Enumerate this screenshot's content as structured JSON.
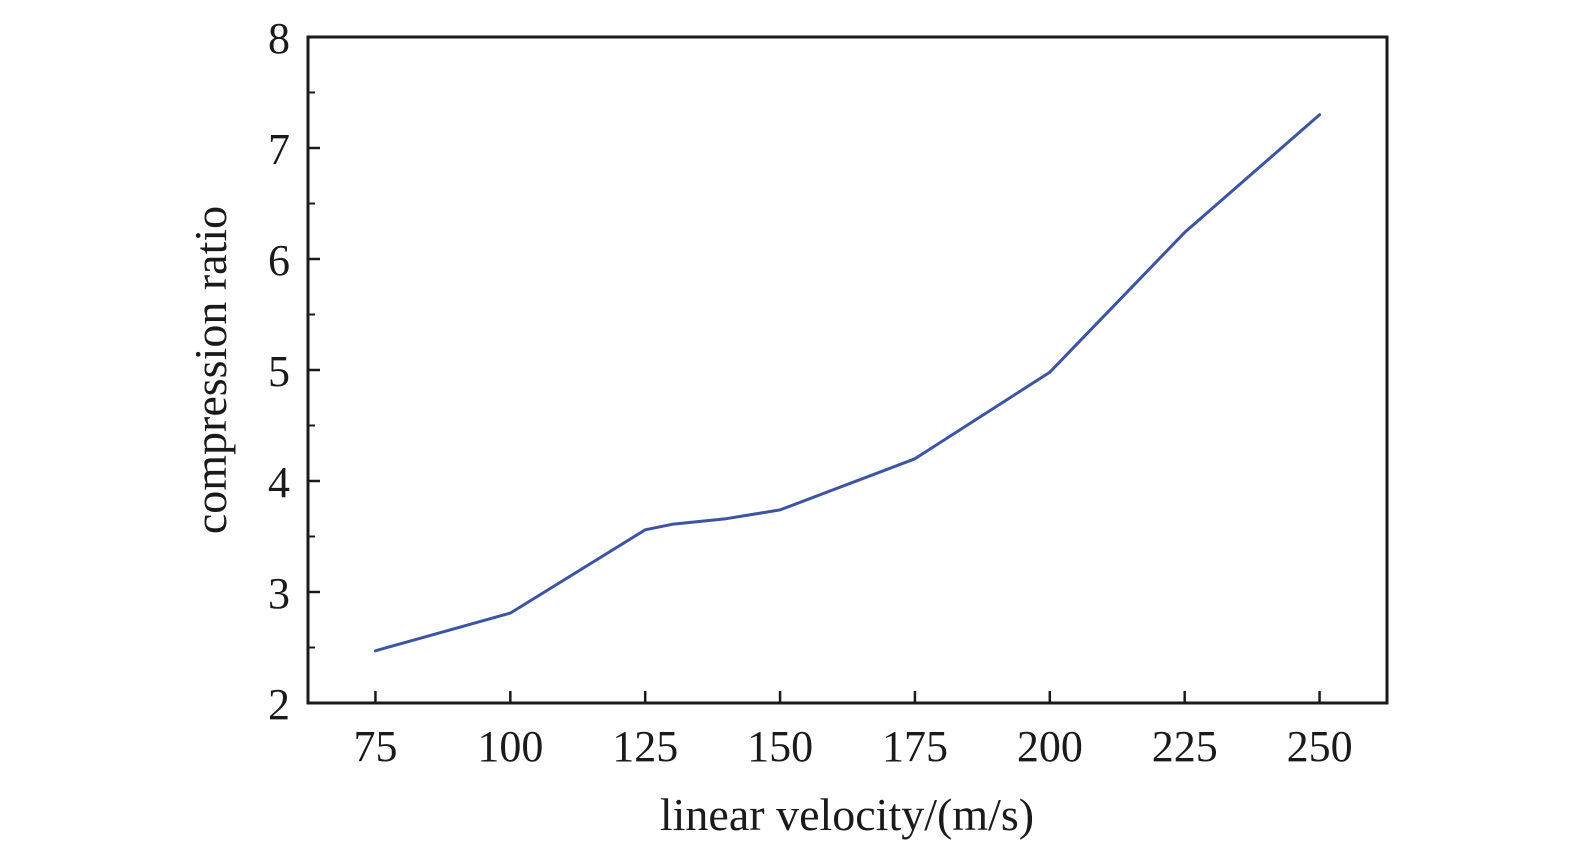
{
  "chart_data": {
    "type": "line",
    "title": "",
    "xlabel": "linear velocity/(m/s)",
    "ylabel": "compression ratio",
    "xlim": [
      62.5,
      262.5
    ],
    "ylim": [
      2,
      8
    ],
    "xticks": [
      75,
      100,
      125,
      150,
      175,
      200,
      225,
      250
    ],
    "yticks": [
      2,
      3,
      4,
      5,
      6,
      7,
      8
    ],
    "y_minor_step": 0.5,
    "grid": false,
    "legend": "none",
    "series": [
      {
        "color": "#3c55a3",
        "x": [
          75,
          100,
          125,
          130,
          140,
          150,
          175,
          200,
          225,
          250
        ],
        "y": [
          2.47,
          2.81,
          3.56,
          3.61,
          3.66,
          3.74,
          4.2,
          4.98,
          6.24,
          7.3
        ]
      }
    ]
  }
}
